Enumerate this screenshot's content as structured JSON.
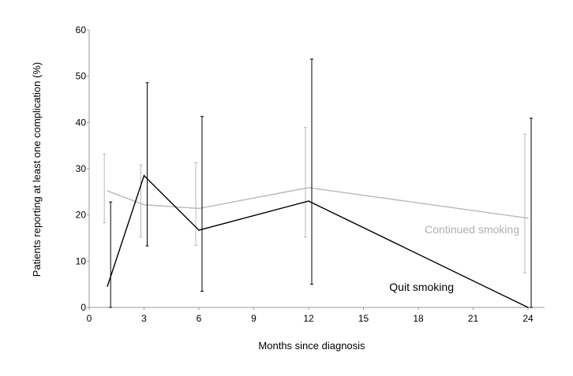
{
  "chart_data": {
    "type": "line",
    "title": "",
    "xlabel": "Months since diagnosis",
    "ylabel": "Patients reporting at least one complication (%)",
    "xlim": [
      0,
      24
    ],
    "ylim": [
      0,
      60
    ],
    "xticks": [
      0,
      3,
      6,
      9,
      12,
      15,
      18,
      21,
      24
    ],
    "yticks": [
      0,
      10,
      20,
      30,
      40,
      50,
      60
    ],
    "grid": false,
    "legend": "none (series labelled directly on plot)",
    "series": [
      {
        "name": "Continued smoking",
        "color": "#b8b8b8",
        "x": [
          1,
          3,
          6,
          12,
          24
        ],
        "y": [
          25.2,
          22.2,
          21.4,
          25.9,
          19.3
        ],
        "err_low": [
          18.3,
          15.2,
          13.4,
          15.2,
          7.5
        ],
        "err_high": [
          33.2,
          30.8,
          31.3,
          38.9,
          37.5
        ]
      },
      {
        "name": "Quit smoking",
        "color": "#000000",
        "x": [
          1,
          3,
          6,
          12,
          24
        ],
        "y": [
          4.6,
          28.5,
          16.7,
          23.0,
          0
        ],
        "err_low": [
          0,
          13.3,
          3.5,
          5.0,
          0
        ],
        "err_high": [
          22.8,
          48.6,
          41.3,
          53.7,
          40.9
        ]
      }
    ]
  }
}
